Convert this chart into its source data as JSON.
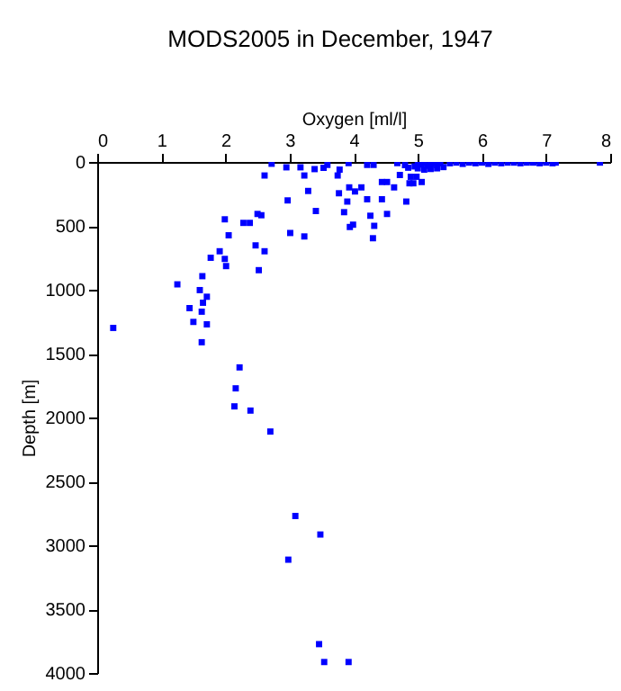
{
  "chart_data": {
    "type": "scatter",
    "title": "MODS2005 in December, 1947",
    "xlabel": "Oxygen [ml/l]",
    "ylabel": "Depth [m]",
    "xlim": [
      0,
      8
    ],
    "xticks": [
      0,
      1,
      2,
      3,
      4,
      5,
      6,
      7,
      8
    ],
    "ylim": [
      4000,
      0
    ],
    "yticks": [
      0,
      500,
      1000,
      1500,
      2000,
      2500,
      3000,
      3500,
      4000
    ],
    "grid": false,
    "marker": "square",
    "series": [
      {
        "color": "#0000ff",
        "x": [
          2.72,
          2.61,
          2.95,
          2.97,
          3.01,
          3.17,
          3.23,
          3.29,
          3.39,
          3.41,
          3.23,
          3.59,
          3.53,
          3.78,
          3.75,
          3.77,
          3.92,
          3.9,
          3.85,
          3.93,
          4.02,
          4.12,
          3.94,
          3.99,
          4.21,
          4.31,
          4.21,
          4.26,
          4.32,
          4.3,
          4.44,
          4.52,
          4.44,
          4.52,
          4.63,
          4.72,
          4.68,
          4.82,
          4.87,
          4.89,
          4.93,
          5.06,
          4.98,
          5.0,
          5.05,
          5.1,
          5.15,
          5.2,
          5.25,
          5.3,
          5.35,
          5.4,
          5.0,
          5.1,
          5.2,
          5.3,
          4.8,
          4.85,
          4.95,
          5.5,
          5.6,
          5.7,
          5.8,
          5.9,
          6.0,
          6.1,
          6.2,
          6.3,
          6.4,
          6.5,
          6.6,
          6.7,
          6.8,
          6.9,
          7.0,
          7.1,
          7.15,
          7.84,
          1.99,
          2.05,
          1.91,
          1.77,
          1.99,
          2.01,
          1.64,
          1.25,
          2.28,
          2.38,
          2.5,
          2.56,
          2.47,
          2.61,
          2.52,
          1.6,
          1.71,
          1.65,
          1.44,
          1.63,
          1.5,
          1.71,
          0.25,
          1.63,
          2.22,
          2.16,
          2.14,
          2.39,
          2.7,
          3.09,
          3.48,
          2.98,
          3.46,
          3.54,
          3.92
        ],
        "values": [
          14,
          106,
          42,
          301,
          556,
          42,
          106,
          227,
          56,
          384,
          583,
          23,
          46,
          60,
          106,
          245,
          9,
          310,
          393,
          199,
          231,
          199,
          509,
          491,
          23,
          23,
          292,
          421,
          500,
          597,
          157,
          157,
          292,
          407,
          199,
          102,
          9,
          310,
          167,
          116,
          167,
          157,
          116,
          5,
          20,
          10,
          30,
          15,
          5,
          25,
          10,
          40,
          50,
          60,
          55,
          50,
          25,
          45,
          35,
          10,
          5,
          15,
          5,
          10,
          5,
          15,
          5,
          10,
          5,
          5,
          10,
          5,
          5,
          10,
          5,
          10,
          5,
          5,
          449,
          574,
          699,
          750,
          759,
          815,
          894,
          958,
          477,
          477,
          407,
          417,
          653,
          699,
          847,
          1003,
          1055,
          1102,
          1144,
          1172,
          1252,
          1271,
          1299,
          1411,
          1608,
          1772,
          1913,
          1946,
          2110,
          2771,
          2916,
          3113,
          3774,
          3914,
          3914
        ]
      }
    ]
  }
}
